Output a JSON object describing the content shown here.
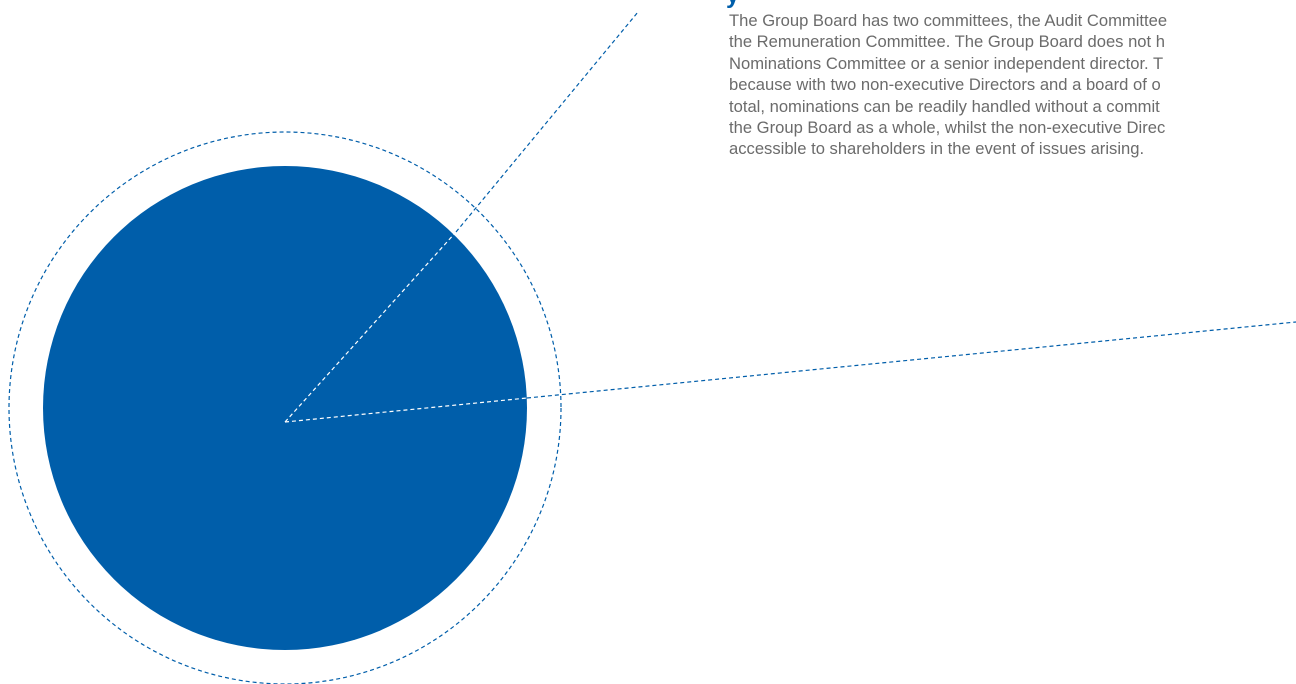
{
  "colors": {
    "accent_blue": "#005eaa",
    "body_text": "#6b6b6b",
    "background": "#ffffff"
  },
  "heading_fragment": "y",
  "paragraph_lines": [
    "The Group Board has two committees, the Audit Committee",
    "the Remuneration Committee. The Group Board does not h",
    "Nominations Committee or a senior independent director. T",
    "because with two non-executive Directors and a board of o",
    "total, nominations can be readily handled without a commit",
    "the Group Board as a whole, whilst the non-executive Direc",
    "accessible to shareholders in the event of issues arising."
  ]
}
